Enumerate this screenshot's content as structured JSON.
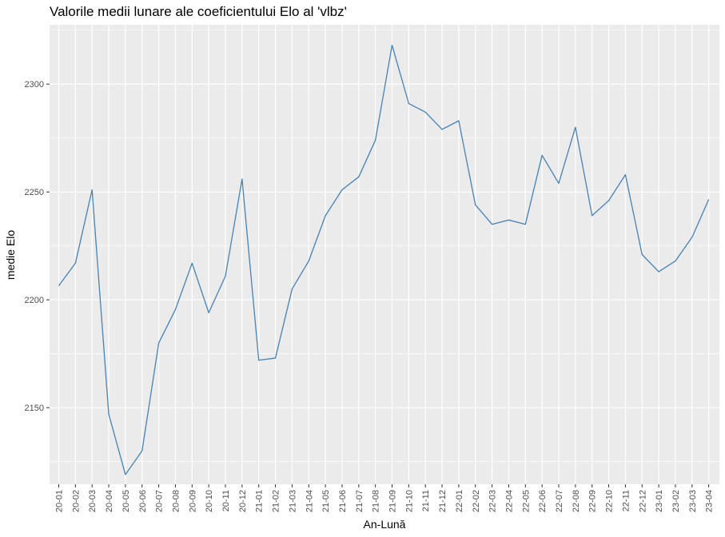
{
  "chart_data": {
    "type": "line",
    "title": "Valorile medii lunare ale coeficientului Elo al 'vlbz'",
    "xlabel": "An-Lună",
    "ylabel": "medie Elo",
    "categories": [
      "20-01",
      "20-02",
      "20-03",
      "20-04",
      "20-05",
      "20-06",
      "20-07",
      "20-08",
      "20-09",
      "20-10",
      "20-11",
      "20-12",
      "21-01",
      "21-02",
      "21-03",
      "21-04",
      "21-05",
      "21-06",
      "21-07",
      "21-08",
      "21-09",
      "21-10",
      "21-11",
      "21-12",
      "22-01",
      "22-02",
      "22-03",
      "22-04",
      "22-05",
      "22-06",
      "22-07",
      "22-08",
      "22-09",
      "22-10",
      "22-11",
      "22-12",
      "23-01",
      "23-02",
      "23-03",
      "23-04"
    ],
    "series": [
      {
        "values": [
          2206.5,
          2217,
          2251,
          2147,
          2119,
          2130,
          2180,
          2195.5,
          2217,
          2194,
          2211,
          2256,
          2172,
          2173,
          2205,
          2218,
          2239,
          2251,
          2257,
          2274,
          2318,
          2291,
          2287,
          2279,
          2283,
          2244,
          2235,
          2237,
          2235,
          2267,
          2254,
          2280,
          2239,
          2246,
          2258,
          2221,
          2213,
          2218,
          2229,
          2246.5
        ]
      }
    ],
    "yticks": [
      2150,
      2200,
      2250,
      2300
    ],
    "ylim": [
      2114.5,
      2327.5
    ],
    "grid": true,
    "line_color": "#4682b4",
    "panel_color": "#ebebeb",
    "grid_color": "#ffffff"
  }
}
